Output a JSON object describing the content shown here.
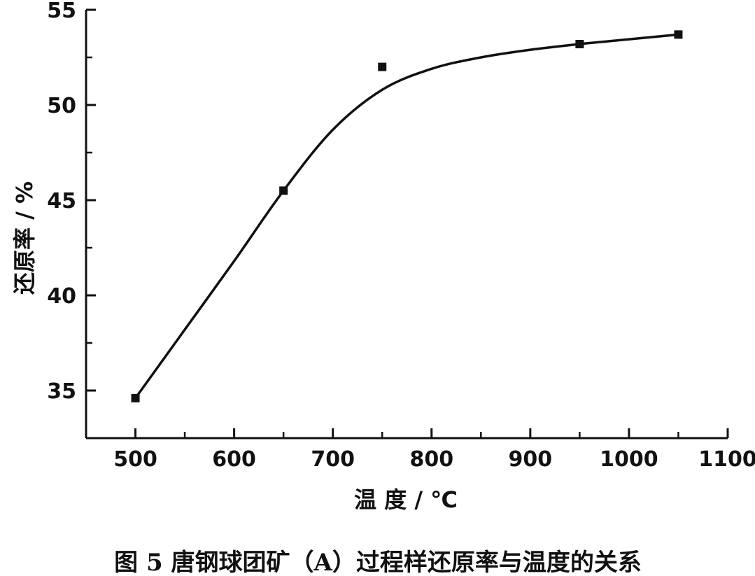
{
  "chart_data": {
    "type": "scatter",
    "title": "",
    "caption": "图 5 唐钢球团矿（A）过程样还原率与温度的关系",
    "xlabel": "温 度 / ℃",
    "ylabel": "还原率 / %",
    "xlim": [
      450,
      1100
    ],
    "ylim": [
      32.5,
      55
    ],
    "x_ticks": [
      500,
      600,
      700,
      800,
      900,
      1000,
      1100
    ],
    "x_minor_ticks": [
      550,
      650,
      750,
      850,
      950,
      1050
    ],
    "y_ticks": [
      35,
      40,
      45,
      50,
      55
    ],
    "y_minor_ticks": [
      37.5,
      42.5,
      47.5,
      52.5
    ],
    "grid": false,
    "legend": "none",
    "series": [
      {
        "points": [
          {
            "x": 500,
            "y": 34.6
          },
          {
            "x": 650,
            "y": 45.5
          },
          {
            "x": 750,
            "y": 52.0
          },
          {
            "x": 950,
            "y": 53.2
          },
          {
            "x": 1050,
            "y": 53.7
          }
        ],
        "fit_curve": [
          {
            "x": 500,
            "y": 34.6
          },
          {
            "x": 550,
            "y": 38.2
          },
          {
            "x": 600,
            "y": 41.8
          },
          {
            "x": 650,
            "y": 45.5
          },
          {
            "x": 700,
            "y": 48.7
          },
          {
            "x": 750,
            "y": 50.8
          },
          {
            "x": 800,
            "y": 51.9
          },
          {
            "x": 850,
            "y": 52.5
          },
          {
            "x": 900,
            "y": 52.9
          },
          {
            "x": 950,
            "y": 53.2
          },
          {
            "x": 1000,
            "y": 53.45
          },
          {
            "x": 1050,
            "y": 53.7
          }
        ]
      }
    ],
    "colors": {
      "ink": "#111111",
      "background": "#ffffff"
    }
  }
}
